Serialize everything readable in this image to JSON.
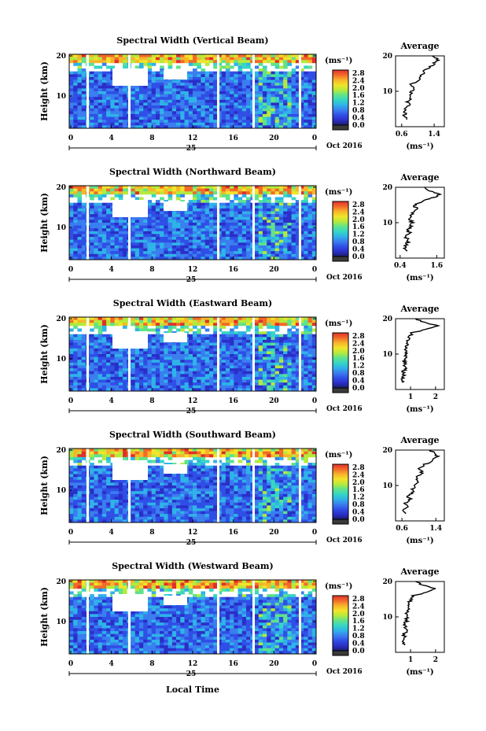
{
  "colors": {
    "missing": "#ffffff",
    "colormap": [
      "#1a1f6b",
      "#2a2fc8",
      "#2f4fe6",
      "#3a7ef0",
      "#2fb3e8",
      "#36d6c4",
      "#5fe28c",
      "#b5ea3c",
      "#f2e42a",
      "#f7b52a",
      "#f26a2a",
      "#e0302a"
    ]
  },
  "common": {
    "x_ticks": [
      "0",
      "4",
      "8",
      "12",
      "16",
      "20",
      "0"
    ],
    "day_label": "25",
    "date_label": "Oct 2016",
    "y_ticks": [
      "20",
      "10"
    ],
    "ylabel": "Height (km)",
    "cbar_unit": "(ms⁻¹)",
    "cbar_ticks": [
      "2.8",
      "2.4",
      "2.0",
      "1.6",
      "1.2",
      "0.8",
      "0.4",
      "0.0"
    ],
    "avg_title": "Average",
    "avg_y_ticks": [
      "20",
      "10"
    ],
    "avg_xlabel": "(ms⁻¹)",
    "xlabel": "Local Time"
  },
  "chart_data": [
    {
      "type": "heatmap",
      "title": "Spectral Width (Vertical Beam)",
      "avg_x_ticks": [
        "0.6",
        "1.4"
      ],
      "avg_xlim": [
        0.45,
        1.65
      ],
      "profile": [
        [
          2,
          0.72
        ],
        [
          3,
          0.64
        ],
        [
          4,
          0.7
        ],
        [
          5,
          0.66
        ],
        [
          6,
          0.78
        ],
        [
          7,
          0.74
        ],
        [
          8,
          0.82
        ],
        [
          9,
          0.8
        ],
        [
          10,
          0.86
        ],
        [
          11,
          0.9
        ],
        [
          12,
          0.84
        ],
        [
          13,
          1.0
        ],
        [
          14,
          1.05
        ],
        [
          15,
          1.12
        ],
        [
          16,
          1.18
        ],
        [
          17,
          1.3
        ],
        [
          18,
          1.42
        ],
        [
          19,
          1.5
        ],
        [
          20,
          1.35
        ]
      ]
    },
    {
      "type": "heatmap",
      "title": "Spectral Width (Northward Beam)",
      "avg_x_ticks": [
        "0.4",
        "1.6"
      ],
      "avg_xlim": [
        0.25,
        1.85
      ],
      "profile": [
        [
          2,
          0.62
        ],
        [
          3,
          0.55
        ],
        [
          4,
          0.6
        ],
        [
          5,
          0.7
        ],
        [
          6,
          0.58
        ],
        [
          7,
          0.72
        ],
        [
          8,
          0.66
        ],
        [
          9,
          0.74
        ],
        [
          10,
          0.8
        ],
        [
          11,
          0.7
        ],
        [
          12,
          0.76
        ],
        [
          13,
          0.86
        ],
        [
          14,
          0.92
        ],
        [
          15,
          0.88
        ],
        [
          16,
          1.1
        ],
        [
          17,
          1.45
        ],
        [
          18,
          1.7
        ],
        [
          19,
          1.4
        ],
        [
          20,
          1.2
        ]
      ]
    },
    {
      "type": "heatmap",
      "title": "Spectral Width (Eastward Beam)",
      "avg_x_ticks": [
        "1",
        "2"
      ],
      "avg_xlim": [
        0.4,
        2.35
      ],
      "profile": [
        [
          2,
          0.72
        ],
        [
          3,
          0.7
        ],
        [
          4,
          0.76
        ],
        [
          5,
          0.7
        ],
        [
          6,
          0.8
        ],
        [
          7,
          0.78
        ],
        [
          8,
          0.74
        ],
        [
          9,
          0.82
        ],
        [
          10,
          0.8
        ],
        [
          11,
          0.78
        ],
        [
          12,
          0.86
        ],
        [
          13,
          0.82
        ],
        [
          14,
          0.9
        ],
        [
          15,
          0.95
        ],
        [
          16,
          1.05
        ],
        [
          17,
          1.6
        ],
        [
          18,
          2.1
        ],
        [
          19,
          1.5
        ],
        [
          20,
          1.2
        ]
      ]
    },
    {
      "type": "heatmap",
      "title": "Spectral Width (Southward Beam)",
      "avg_x_ticks": [
        "0.6",
        "1.4"
      ],
      "avg_xlim": [
        0.45,
        1.6
      ],
      "profile": [
        [
          2,
          0.7
        ],
        [
          3,
          0.62
        ],
        [
          4,
          0.7
        ],
        [
          5,
          0.66
        ],
        [
          6,
          0.8
        ],
        [
          7,
          0.74
        ],
        [
          8,
          0.86
        ],
        [
          9,
          0.84
        ],
        [
          10,
          0.9
        ],
        [
          11,
          0.96
        ],
        [
          12,
          0.92
        ],
        [
          13,
          1.02
        ],
        [
          14,
          1.08
        ],
        [
          15,
          1.0
        ],
        [
          16,
          1.15
        ],
        [
          17,
          1.3
        ],
        [
          18,
          1.45
        ],
        [
          19,
          1.38
        ],
        [
          20,
          1.25
        ]
      ]
    },
    {
      "type": "heatmap",
      "title": "Spectral Width (Westward Beam)",
      "avg_x_ticks": [
        "1",
        "2"
      ],
      "avg_xlim": [
        0.4,
        2.35
      ],
      "profile": [
        [
          2,
          0.74
        ],
        [
          3,
          0.7
        ],
        [
          4,
          0.78
        ],
        [
          5,
          0.72
        ],
        [
          6,
          0.82
        ],
        [
          7,
          0.8
        ],
        [
          8,
          0.78
        ],
        [
          9,
          0.86
        ],
        [
          10,
          0.84
        ],
        [
          11,
          0.82
        ],
        [
          12,
          0.9
        ],
        [
          13,
          0.86
        ],
        [
          14,
          0.95
        ],
        [
          15,
          1.0
        ],
        [
          16,
          1.1
        ],
        [
          17,
          1.7
        ],
        [
          18,
          2.0
        ],
        [
          19,
          1.5
        ],
        [
          20,
          1.2
        ]
      ]
    }
  ]
}
